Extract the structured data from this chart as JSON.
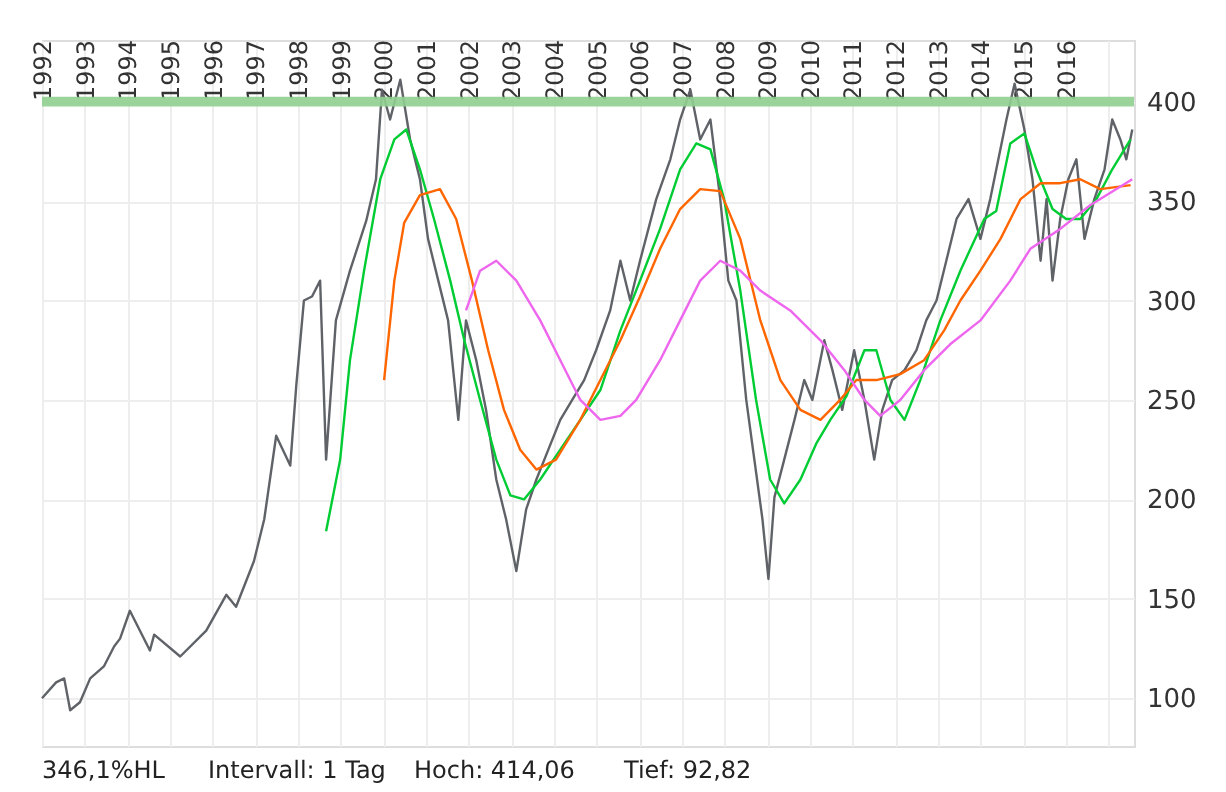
{
  "chart_data": {
    "type": "line",
    "xlim": [
      1992,
      2017.6
    ],
    "ylim": [
      76,
      431
    ],
    "xticks": [
      1992,
      1993,
      1994,
      1995,
      1996,
      1997,
      1998,
      1999,
      2000,
      2001,
      2002,
      2003,
      2004,
      2005,
      2006,
      2007,
      2008,
      2009,
      2010,
      2011,
      2012,
      2013,
      2014,
      2015,
      2016,
      {
        "value": 2017,
        "label": null
      }
    ],
    "yticks": [
      100,
      150,
      200,
      250,
      300,
      350,
      400
    ],
    "grid": true,
    "line_style": "solid",
    "marker": "none",
    "bands": [
      {
        "axis": "y",
        "from": 397.5,
        "to": 402.5,
        "color": "#8fcf8f"
      }
    ],
    "annotations": [
      "346,1%HL",
      "Intervall: 1 Tag",
      "Hoch:  414,06",
      "Tief:  92,82"
    ],
    "series": [
      {
        "color": "#5f6368",
        "x": [
          1992.0,
          1992.33,
          1992.52,
          1992.66,
          1992.89,
          1993.13,
          1993.45,
          1993.69,
          1993.83,
          1994.06,
          1994.53,
          1994.63,
          1995.24,
          1995.85,
          1996.32,
          1996.55,
          1996.97,
          1997.21,
          1997.49,
          1997.82,
          1997.96,
          1998.14,
          1998.33,
          1998.52,
          1998.66,
          1998.89,
          1999.22,
          1999.6,
          1999.83,
          1999.97,
          2000.16,
          2000.4,
          2000.63,
          2000.86,
          2001.05,
          2001.29,
          2001.52,
          2001.76,
          2001.94,
          2002.18,
          2002.41,
          2002.65,
          2002.88,
          2003.12,
          2003.35,
          2003.59,
          2003.87,
          2004.15,
          2004.43,
          2004.71,
          2004.99,
          2005.32,
          2005.56,
          2005.79,
          2006.02,
          2006.4,
          2006.73,
          2006.96,
          2007.2,
          2007.43,
          2007.67,
          2007.9,
          2008.09,
          2008.28,
          2008.51,
          2008.7,
          2008.89,
          2009.03,
          2009.17,
          2009.4,
          2009.64,
          2009.87,
          2010.06,
          2010.34,
          2010.53,
          2010.76,
          2011.04,
          2011.28,
          2011.51,
          2011.7,
          2011.93,
          2012.22,
          2012.5,
          2012.73,
          2012.97,
          2013.2,
          2013.44,
          2013.72,
          2014.0,
          2014.23,
          2014.42,
          2014.61,
          2014.8,
          2015.03,
          2015.22,
          2015.41,
          2015.55,
          2015.69,
          2015.87,
          2016.06,
          2016.25,
          2016.44,
          2016.67,
          2016.91,
          2017.09,
          2017.28,
          2017.42,
          2017.56
        ],
        "values": [
          100,
          108,
          110,
          94,
          98,
          110,
          116,
          126,
          130,
          144,
          124,
          132,
          121,
          134,
          152,
          146,
          169,
          190,
          232,
          217,
          257,
          300,
          302,
          310,
          220,
          290,
          315,
          340,
          361,
          406,
          391,
          411,
          381,
          361,
          331,
          310,
          290,
          240,
          290,
          270,
          245,
          210,
          190,
          164,
          195,
          210,
          225,
          240,
          250,
          260,
          275,
          295,
          320,
          300,
          320,
          351,
          371,
          391,
          406,
          381,
          391,
          351,
          310,
          300,
          250,
          220,
          190,
          160,
          201,
          220,
          240,
          260,
          250,
          280,
          265,
          245,
          275,
          250,
          220,
          245,
          260,
          265,
          275,
          290,
          300,
          320,
          341,
          351,
          331,
          351,
          371,
          391,
          409,
          386,
          361,
          320,
          351,
          310,
          341,
          361,
          371,
          331,
          351,
          366,
          391,
          381,
          371,
          386
        ]
      },
      {
        "color": "#00cc33",
        "x": [
          1998.66,
          1998.99,
          1999.22,
          1999.55,
          1999.93,
          2000.26,
          2000.54,
          2000.86,
          2001.19,
          2001.57,
          2001.9,
          2002.27,
          2002.65,
          2002.98,
          2003.3,
          2003.68,
          2004.15,
          2004.62,
          2005.09,
          2005.56,
          2006.02,
          2006.49,
          2006.96,
          2007.34,
          2007.67,
          2007.99,
          2008.37,
          2008.74,
          2009.07,
          2009.4,
          2009.78,
          2010.15,
          2010.48,
          2010.86,
          2011.28,
          2011.56,
          2011.89,
          2012.22,
          2012.59,
          2013.06,
          2013.53,
          2014.09,
          2014.37,
          2014.7,
          2015.03,
          2015.31,
          2015.69,
          2016.01,
          2016.34,
          2016.72,
          2017.09,
          2017.52
        ],
        "values": [
          184,
          220,
          270,
          315,
          361,
          381,
          386,
          366,
          341,
          310,
          280,
          250,
          220,
          202,
          200,
          210,
          225,
          240,
          255,
          285,
          310,
          336,
          366,
          379,
          376,
          351,
          305,
          250,
          210,
          198,
          210,
          228,
          240,
          252,
          275,
          275,
          250,
          240,
          260,
          290,
          315,
          341,
          345,
          379,
          384,
          366,
          346,
          341,
          341,
          351,
          366,
          381
        ]
      },
      {
        "color": "#ff6600",
        "x": [
          2000.02,
          2000.26,
          2000.49,
          2000.86,
          2001.33,
          2001.71,
          2002.08,
          2002.46,
          2002.83,
          2003.21,
          2003.59,
          2004.05,
          2004.62,
          2005.09,
          2005.56,
          2006.02,
          2006.49,
          2006.96,
          2007.43,
          2007.9,
          2008.37,
          2008.84,
          2009.31,
          2009.78,
          2010.25,
          2010.71,
          2011.09,
          2011.56,
          2012.12,
          2012.68,
          2013.15,
          2013.53,
          2014.0,
          2014.47,
          2014.94,
          2015.41,
          2015.87,
          2016.34,
          2016.81,
          2017.52
        ],
        "values": [
          260,
          310,
          339,
          353,
          356,
          341,
          310,
          275,
          245,
          225,
          215,
          220,
          240,
          260,
          280,
          302,
          326,
          346,
          356,
          355,
          331,
          290,
          260,
          245,
          240,
          250,
          260,
          260,
          263,
          270,
          285,
          300,
          315,
          331,
          351,
          359,
          359,
          361,
          356,
          358
        ]
      },
      {
        "color": "#ee66ee",
        "x": [
          2001.94,
          2002.27,
          2002.65,
          2003.12,
          2003.68,
          2004.15,
          2004.62,
          2005.09,
          2005.56,
          2005.93,
          2006.49,
          2006.96,
          2007.43,
          2007.9,
          2008.37,
          2008.84,
          2009.54,
          2010.25,
          2010.81,
          2011.28,
          2011.65,
          2012.12,
          2012.68,
          2013.29,
          2014.0,
          2014.7,
          2015.17,
          2015.87,
          2016.58,
          2017.56
        ],
        "values": [
          295,
          315,
          320,
          310,
          290,
          270,
          250,
          240,
          242,
          250,
          270,
          290,
          310,
          320,
          315,
          305,
          295,
          280,
          265,
          250,
          242,
          250,
          265,
          278,
          290,
          310,
          326,
          336,
          348,
          361
        ]
      }
    ]
  }
}
